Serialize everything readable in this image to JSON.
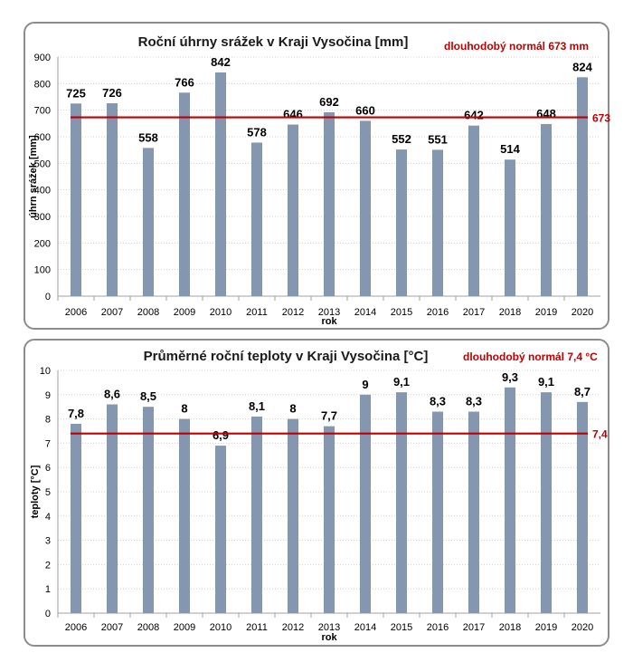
{
  "chart_data": [
    {
      "type": "bar",
      "title": "Roční úhrny srážek v Kraji Vysočina [mm]",
      "norm_label": "dlouhodobý normál 673 mm",
      "norm_value": 673,
      "norm_value_label": "673",
      "xlabel": "rok",
      "ylabel": "úhrn srážek [mm]",
      "ylim": [
        0,
        900
      ],
      "yticks": [
        0,
        100,
        200,
        300,
        400,
        500,
        600,
        700,
        800,
        900
      ],
      "categories": [
        "2006",
        "2007",
        "2008",
        "2009",
        "2010",
        "2011",
        "2012",
        "2013",
        "2014",
        "2015",
        "2016",
        "2017",
        "2018",
        "2019",
        "2020"
      ],
      "values": [
        725,
        726,
        558,
        766,
        842,
        578,
        646,
        692,
        660,
        552,
        551,
        642,
        514,
        648,
        824
      ],
      "value_labels": [
        "725",
        "726",
        "558",
        "766",
        "842",
        "578",
        "646",
        "692",
        "660",
        "552",
        "551",
        "642",
        "514",
        "648",
        "824"
      ],
      "bar_color": "#8496b0",
      "norm_color": "#c00000",
      "grid": true
    },
    {
      "type": "bar",
      "title": "Průměrné roční teploty v Kraji Vysočina [°C]",
      "norm_label": "dlouhodobý normál 7,4 °C",
      "norm_value": 7.4,
      "norm_value_label": "7,4",
      "xlabel": "rok",
      "ylabel": "teploty [°C]",
      "ylim": [
        0,
        10
      ],
      "yticks": [
        0,
        1,
        2,
        3,
        4,
        5,
        6,
        7,
        8,
        9,
        10
      ],
      "categories": [
        "2006",
        "2007",
        "2008",
        "2009",
        "2010",
        "2011",
        "2012",
        "2013",
        "2014",
        "2015",
        "2016",
        "2017",
        "2018",
        "2019",
        "2020"
      ],
      "values": [
        7.8,
        8.6,
        8.5,
        8.0,
        6.9,
        8.1,
        8.0,
        7.7,
        9.0,
        9.1,
        8.3,
        8.3,
        9.3,
        9.1,
        8.7
      ],
      "value_labels": [
        "7,8",
        "8,6",
        "8,5",
        "8",
        "6,9",
        "8,1",
        "8",
        "7,7",
        "9",
        "9,1",
        "8,3",
        "8,3",
        "9,3",
        "9,1",
        "8,7"
      ],
      "bar_color": "#8496b0",
      "norm_color": "#c00000",
      "grid": true
    }
  ]
}
